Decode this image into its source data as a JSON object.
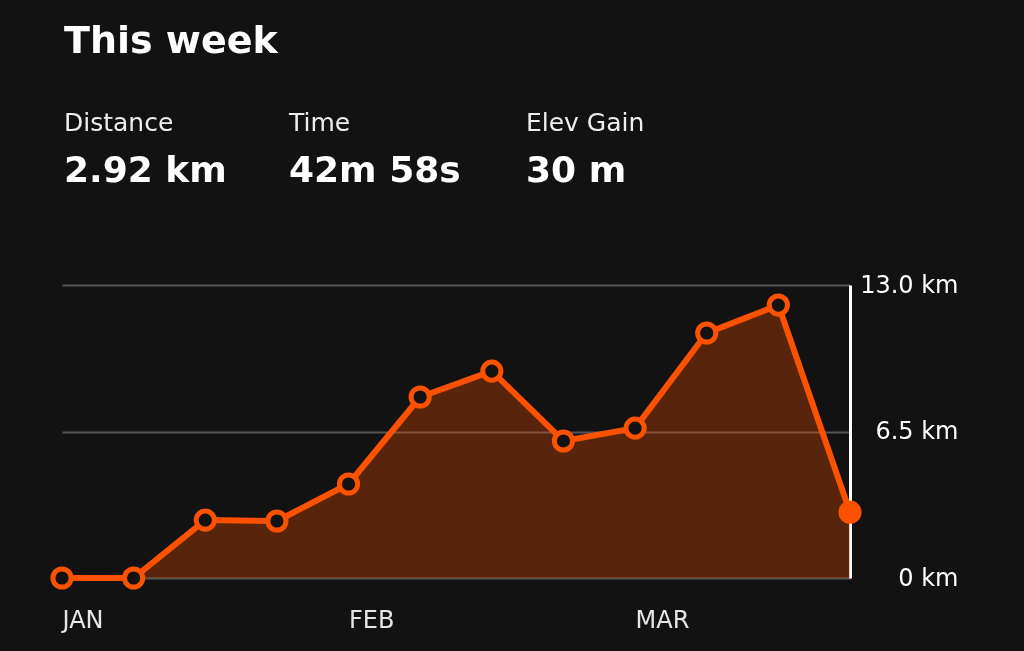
{
  "chart_data": {
    "type": "area",
    "title": "This week",
    "annotations": [
      "Distance",
      "2.92 km",
      "Time",
      "42m 58s",
      "Elev Gain",
      "30 m"
    ],
    "categories": [
      "JAN",
      null,
      null,
      null,
      "FEB",
      null,
      null,
      null,
      "MAR",
      null,
      null,
      null
    ],
    "series": [
      {
        "color": "#fc5200",
        "values": [
          0,
          0,
          2.57,
          2.53,
          4.17,
          8.03,
          9.18,
          6.08,
          6.65,
          10.87,
          12.11,
          2.92
        ]
      }
    ],
    "ylim": [
      0,
      13
    ],
    "yticks": [
      {
        "value": 0,
        "label": "0 km"
      },
      {
        "value": 6.5,
        "label": "6.5 km"
      },
      {
        "value": 13,
        "label": "13.0 km"
      }
    ],
    "grid": "y",
    "marker": "circle"
  }
}
